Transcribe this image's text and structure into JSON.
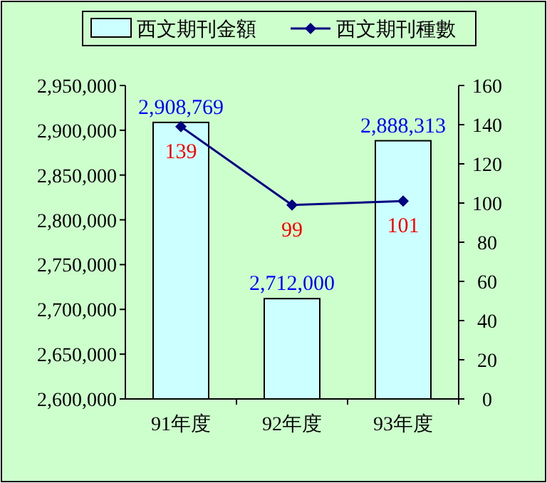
{
  "chart_data": {
    "type": "bar",
    "categories": [
      "91年度",
      "92年度",
      "93年度"
    ],
    "series": [
      {
        "name": "西文期刊金額",
        "color": "#ccffff",
        "values": [
          2908769,
          2712000,
          2888313
        ],
        "value_labels": [
          "2,908,769",
          "2,712,000",
          "2,888,313"
        ]
      },
      {
        "name": "西文期刊種數",
        "type": "line",
        "axis": "y2",
        "color": "#000080",
        "values": [
          139,
          99,
          101
        ],
        "value_labels": [
          "139",
          "99",
          "101"
        ],
        "marker": "diamond"
      }
    ],
    "ylim": [
      2600000,
      2950000
    ],
    "yticks": [
      {
        "value": 2600000,
        "label": "2,600,000"
      },
      {
        "value": 2650000,
        "label": "2,650,000"
      },
      {
        "value": 2700000,
        "label": "2,700,000"
      },
      {
        "value": 2750000,
        "label": "2,750,000"
      },
      {
        "value": 2800000,
        "label": "2,800,000"
      },
      {
        "value": 2850000,
        "label": "2,850,000"
      },
      {
        "value": 2900000,
        "label": "2,900,000"
      },
      {
        "value": 2950000,
        "label": "2,950,000"
      }
    ],
    "y2lim": [
      0,
      160
    ],
    "y2ticks": [
      0,
      20,
      40,
      60,
      80,
      100,
      120,
      140,
      160
    ],
    "legend": "top",
    "grid": false
  }
}
